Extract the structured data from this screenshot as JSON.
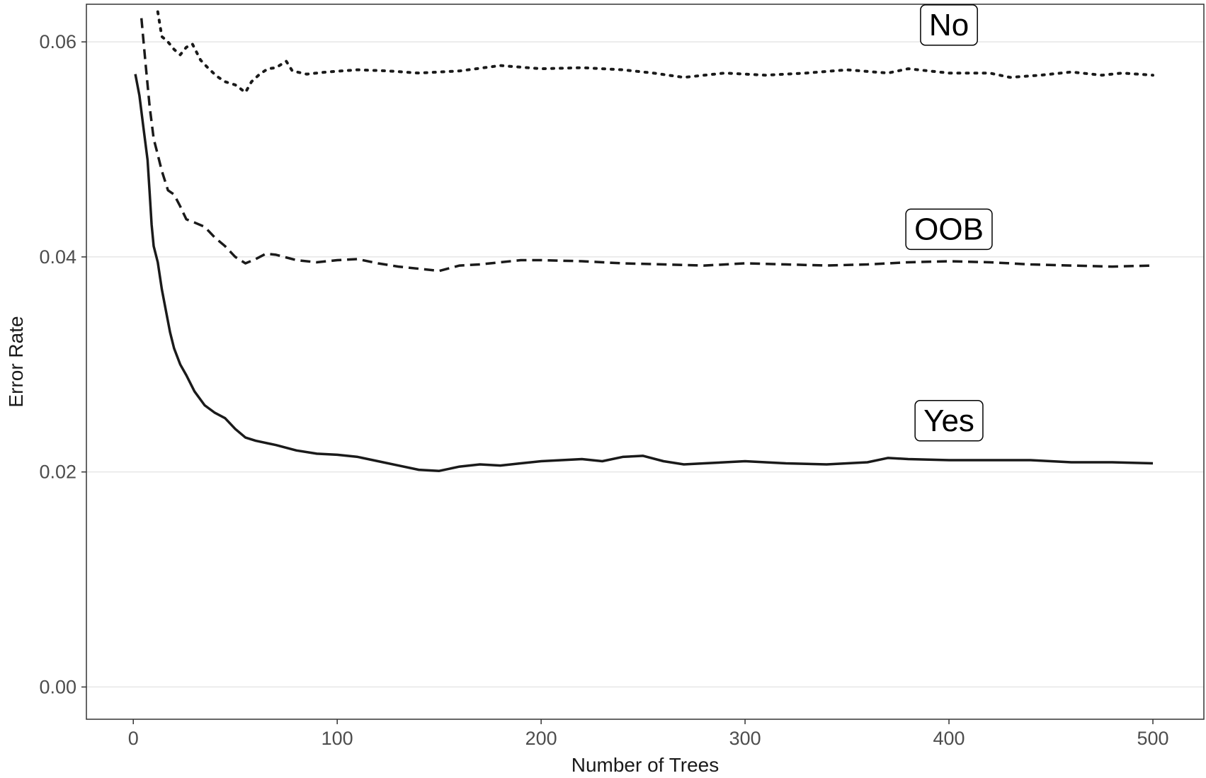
{
  "chart_data": {
    "type": "line",
    "title": "",
    "xlabel": "Number of Trees",
    "ylabel": "Error Rate",
    "xlim": [
      -23,
      525
    ],
    "ylim": [
      -0.003,
      0.0635
    ],
    "x_ticks": [
      0,
      100,
      200,
      300,
      400,
      500
    ],
    "y_ticks": [
      0.0,
      0.02,
      0.04,
      0.06
    ],
    "x_tick_labels": [
      "0",
      "100",
      "200",
      "300",
      "400",
      "500"
    ],
    "y_tick_labels": [
      "0.00",
      "0.02",
      "0.04",
      "0.06"
    ],
    "grid": "horizontal major lines",
    "legend": "none (series labelled directly)",
    "series": [
      {
        "name": "No",
        "line_style": "dotted",
        "points": [
          [
            12,
            0.0628
          ],
          [
            14,
            0.0605
          ],
          [
            17,
            0.06
          ],
          [
            20,
            0.0593
          ],
          [
            23,
            0.0588
          ],
          [
            26,
            0.0595
          ],
          [
            29,
            0.0598
          ],
          [
            33,
            0.0583
          ],
          [
            37,
            0.0575
          ],
          [
            41,
            0.0568
          ],
          [
            45,
            0.0563
          ],
          [
            50,
            0.056
          ],
          [
            55,
            0.0553
          ],
          [
            58,
            0.0563
          ],
          [
            62,
            0.057
          ],
          [
            66,
            0.0575
          ],
          [
            70,
            0.0576
          ],
          [
            75,
            0.0582
          ],
          [
            78,
            0.0573
          ],
          [
            85,
            0.057
          ],
          [
            95,
            0.0572
          ],
          [
            110,
            0.0574
          ],
          [
            125,
            0.0573
          ],
          [
            140,
            0.0571
          ],
          [
            160,
            0.0573
          ],
          [
            180,
            0.0578
          ],
          [
            200,
            0.0575
          ],
          [
            220,
            0.0576
          ],
          [
            240,
            0.0574
          ],
          [
            255,
            0.0571
          ],
          [
            270,
            0.0567
          ],
          [
            290,
            0.0571
          ],
          [
            310,
            0.0569
          ],
          [
            330,
            0.0571
          ],
          [
            350,
            0.0574
          ],
          [
            370,
            0.0571
          ],
          [
            380,
            0.0575
          ],
          [
            400,
            0.0571
          ],
          [
            420,
            0.0571
          ],
          [
            430,
            0.0567
          ],
          [
            445,
            0.0569
          ],
          [
            460,
            0.0572
          ],
          [
            475,
            0.0569
          ],
          [
            485,
            0.0571
          ],
          [
            500,
            0.0569
          ]
        ]
      },
      {
        "name": "OOB",
        "line_style": "dashed",
        "points": [
          [
            4,
            0.0622
          ],
          [
            6,
            0.058
          ],
          [
            8,
            0.054
          ],
          [
            10,
            0.051
          ],
          [
            12,
            0.0495
          ],
          [
            14,
            0.048
          ],
          [
            17,
            0.0462
          ],
          [
            20,
            0.0458
          ],
          [
            23,
            0.0447
          ],
          [
            26,
            0.0435
          ],
          [
            30,
            0.0432
          ],
          [
            35,
            0.0428
          ],
          [
            40,
            0.0418
          ],
          [
            45,
            0.041
          ],
          [
            50,
            0.04
          ],
          [
            55,
            0.0394
          ],
          [
            60,
            0.0398
          ],
          [
            65,
            0.0403
          ],
          [
            70,
            0.0402
          ],
          [
            80,
            0.0397
          ],
          [
            90,
            0.0395
          ],
          [
            100,
            0.0397
          ],
          [
            110,
            0.0398
          ],
          [
            120,
            0.0394
          ],
          [
            130,
            0.0391
          ],
          [
            140,
            0.0389
          ],
          [
            150,
            0.0387
          ],
          [
            160,
            0.0392
          ],
          [
            170,
            0.0393
          ],
          [
            180,
            0.0395
          ],
          [
            190,
            0.0397
          ],
          [
            200,
            0.0397
          ],
          [
            220,
            0.0396
          ],
          [
            240,
            0.0394
          ],
          [
            260,
            0.0393
          ],
          [
            280,
            0.0392
          ],
          [
            300,
            0.0394
          ],
          [
            320,
            0.0393
          ],
          [
            340,
            0.0392
          ],
          [
            360,
            0.0393
          ],
          [
            380,
            0.0395
          ],
          [
            400,
            0.0396
          ],
          [
            420,
            0.0395
          ],
          [
            440,
            0.0393
          ],
          [
            460,
            0.0392
          ],
          [
            480,
            0.0391
          ],
          [
            500,
            0.0392
          ]
        ]
      },
      {
        "name": "Yes",
        "line_style": "solid",
        "points": [
          [
            1,
            0.057
          ],
          [
            3,
            0.055
          ],
          [
            5,
            0.052
          ],
          [
            7,
            0.049
          ],
          [
            8,
            0.046
          ],
          [
            9,
            0.043
          ],
          [
            10,
            0.041
          ],
          [
            12,
            0.0395
          ],
          [
            14,
            0.037
          ],
          [
            16,
            0.035
          ],
          [
            18,
            0.033
          ],
          [
            20,
            0.0315
          ],
          [
            23,
            0.03
          ],
          [
            26,
            0.029
          ],
          [
            30,
            0.0275
          ],
          [
            35,
            0.0262
          ],
          [
            40,
            0.0255
          ],
          [
            45,
            0.025
          ],
          [
            50,
            0.024
          ],
          [
            55,
            0.0232
          ],
          [
            60,
            0.0229
          ],
          [
            70,
            0.0225
          ],
          [
            80,
            0.022
          ],
          [
            90,
            0.0217
          ],
          [
            100,
            0.0216
          ],
          [
            110,
            0.0214
          ],
          [
            120,
            0.021
          ],
          [
            130,
            0.0206
          ],
          [
            140,
            0.0202
          ],
          [
            150,
            0.0201
          ],
          [
            160,
            0.0205
          ],
          [
            170,
            0.0207
          ],
          [
            180,
            0.0206
          ],
          [
            190,
            0.0208
          ],
          [
            200,
            0.021
          ],
          [
            210,
            0.0211
          ],
          [
            220,
            0.0212
          ],
          [
            230,
            0.021
          ],
          [
            240,
            0.0214
          ],
          [
            250,
            0.0215
          ],
          [
            260,
            0.021
          ],
          [
            270,
            0.0207
          ],
          [
            280,
            0.0208
          ],
          [
            300,
            0.021
          ],
          [
            320,
            0.0208
          ],
          [
            340,
            0.0207
          ],
          [
            360,
            0.0209
          ],
          [
            370,
            0.0213
          ],
          [
            380,
            0.0212
          ],
          [
            400,
            0.0211
          ],
          [
            420,
            0.0211
          ],
          [
            440,
            0.0211
          ],
          [
            460,
            0.0209
          ],
          [
            480,
            0.0209
          ],
          [
            500,
            0.0208
          ]
        ]
      }
    ],
    "annotations": [
      {
        "text": "No",
        "x": 400,
        "y": 0.0616
      },
      {
        "text": "OOB",
        "x": 400,
        "y": 0.0426
      },
      {
        "text": "Yes",
        "x": 400,
        "y": 0.0248
      }
    ]
  }
}
